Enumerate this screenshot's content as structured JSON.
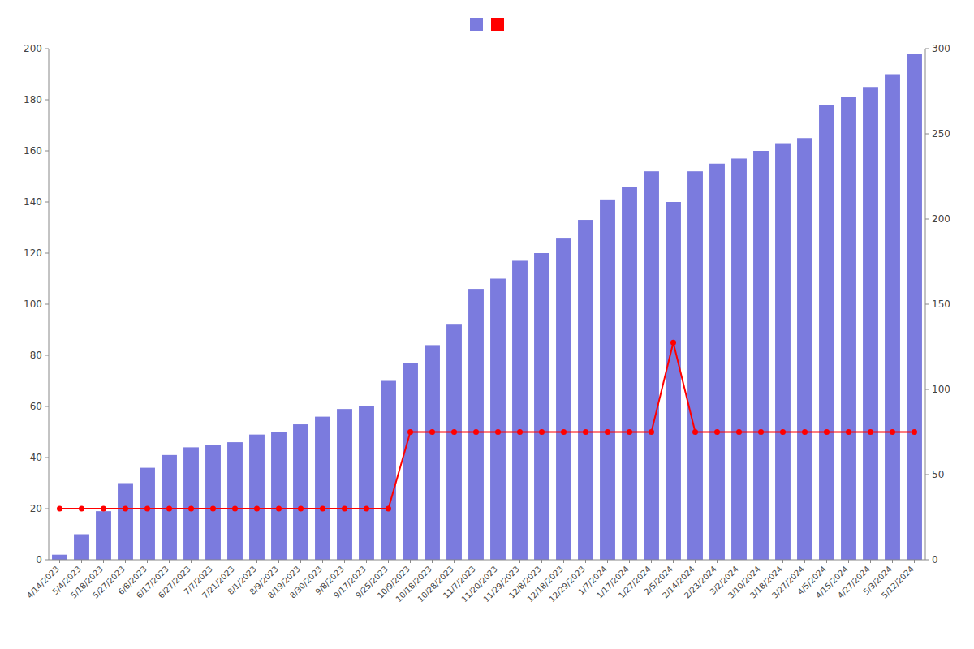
{
  "chart_data": {
    "type": "bar",
    "categories": [
      "4/14/2023",
      "5/4/2023",
      "5/18/2023",
      "5/27/2023",
      "6/8/2023",
      "6/17/2023",
      "6/27/2023",
      "7/7/2023",
      "7/21/2023",
      "8/1/2023",
      "8/9/2023",
      "8/19/2023",
      "8/30/2023",
      "9/8/2023",
      "9/17/2023",
      "9/25/2023",
      "10/9/2023",
      "10/18/2023",
      "10/28/2023",
      "11/7/2023",
      "11/20/2023",
      "11/29/2023",
      "12/8/2023",
      "12/18/2023",
      "12/29/2023",
      "1/7/2024",
      "1/17/2024",
      "1/27/2024",
      "2/5/2024",
      "2/14/2024",
      "2/23/2024",
      "3/2/2024",
      "3/10/2024",
      "3/18/2024",
      "3/27/2024",
      "4/5/2024",
      "4/15/2024",
      "4/27/2024",
      "5/3/2024",
      "5/12/2024"
    ],
    "series": [
      {
        "type": "bar",
        "color": "#7b7bde",
        "values": [
          2,
          10,
          19,
          30,
          36,
          41,
          44,
          45,
          46,
          49,
          50,
          53,
          56,
          59,
          60,
          70,
          77,
          84,
          92,
          106,
          110,
          117,
          120,
          126,
          133,
          141,
          146,
          152,
          140,
          152,
          155,
          157,
          160,
          163,
          165,
          178,
          181,
          185,
          190,
          198
        ]
      },
      {
        "type": "line",
        "color": "#ff0000",
        "marker": "circle",
        "values": [
          20,
          20,
          20,
          20,
          20,
          20,
          20,
          20,
          20,
          20,
          20,
          20,
          20,
          20,
          20,
          20,
          50,
          50,
          50,
          50,
          50,
          50,
          50,
          50,
          50,
          50,
          50,
          50,
          85,
          50,
          50,
          50,
          50,
          50,
          50,
          50,
          50,
          50,
          50,
          50
        ]
      }
    ],
    "ylim": [
      0,
      200
    ],
    "yticks": [
      0,
      20,
      40,
      60,
      80,
      100,
      120,
      140,
      160,
      180,
      200
    ],
    "y2lim": [
      0,
      300
    ],
    "y2ticks": [
      0,
      50,
      100,
      150,
      200,
      250,
      300
    ],
    "grid": false,
    "legend": "top"
  }
}
